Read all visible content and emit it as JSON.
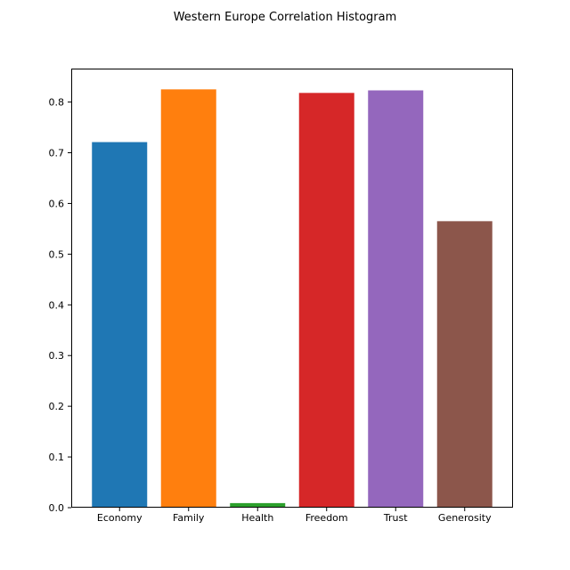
{
  "chart_data": {
    "type": "bar",
    "title": "Western Europe Correlation Histogram",
    "xlabel": "",
    "ylabel": "",
    "categories": [
      "Economy",
      "Family",
      "Health",
      "Freedom",
      "Trust",
      "Generosity"
    ],
    "values": [
      0.721,
      0.825,
      0.009,
      0.818,
      0.823,
      0.565
    ],
    "colors": [
      "#1f77b4",
      "#ff7f0e",
      "#2ca02c",
      "#d62728",
      "#9467bd",
      "#8c564b"
    ],
    "ylim": [
      0.0,
      0.866
    ],
    "yticks": [
      0.0,
      0.1,
      0.2,
      0.3,
      0.4,
      0.5,
      0.6,
      0.7,
      0.8
    ],
    "ytick_labels": [
      "0.0",
      "0.1",
      "0.2",
      "0.3",
      "0.4",
      "0.5",
      "0.6",
      "0.7",
      "0.8"
    ],
    "grid": false,
    "legend": "none"
  }
}
